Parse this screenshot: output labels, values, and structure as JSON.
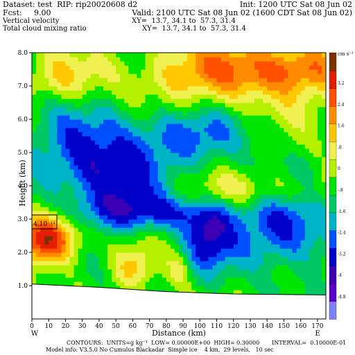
{
  "header": {
    "dataset": "Dataset: test  RIP: rip20020608 d2",
    "init": "Init: 1200 UTC Sat 08 Jun 02",
    "fcst": "Fcst:     9.00",
    "valid": "Valid: 2100 UTC Sat 08 Jun 02 (1600 CDT Sat 08 Jun 02)",
    "field1": "Vertical velocity",
    "xy1": "XY=  13.7, 34.1 to  57.3, 31.4",
    "field2": "Total cloud mixing ratio",
    "xy2": "XY=  13.7, 34.1 to  57.3, 31.4"
  },
  "footer": {
    "contours": "CONTOURS:  UNITS=g kg⁻¹  LOW= 0.00000E+00  HIGH= 0.30000       INTERVAL=  0.10000E-01",
    "model": "Model info: V3.5.0 No Cumulus Blackadar  Simple ice    4 km,  29 levels,   10 sec"
  },
  "colors": {
    "ground": "#ffffff",
    "terrain_line": "#000000",
    "palette": [
      "#7f7fff",
      "#5a00c8",
      "#3c00b4",
      "#0000c8",
      "#0050ff",
      "#00b4c8",
      "#00c864",
      "#00e600",
      "#b4f000",
      "#f0f050",
      "#ffc800",
      "#ff8c00",
      "#ff5000",
      "#e61e00",
      "#7a3300"
    ]
  },
  "chart_data": {
    "type": "heatmap",
    "title": "Vertical velocity",
    "xlabel": "Distance (km)",
    "ylabel": "Height (km)",
    "xlim": [
      0,
      175
    ],
    "ylim": [
      0,
      8
    ],
    "x_ticks": [
      "0",
      "10",
      "20",
      "30",
      "40",
      "50",
      "60",
      "70",
      "80",
      "90",
      "100",
      "110",
      "120",
      "130",
      "140",
      "150",
      "160",
      "170"
    ],
    "y_ticks": [
      "1.0",
      "2.0",
      "3.0",
      "4.0",
      "5.0",
      "6.0",
      "7.0",
      "8.0"
    ],
    "endpoints": {
      "left": "W",
      "right": "E"
    },
    "colorbar": {
      "unit": "cm s⁻¹",
      "labels": [
        "3.2",
        "2.4",
        "1.6",
        ".8",
        "0",
        "-.8",
        "-1.6",
        "-2.4",
        "-3.2",
        "-4",
        "-4.8"
      ]
    },
    "annotation": "4.10⁻¹¹",
    "terrain_km": [
      [
        0,
        1.05
      ],
      [
        40,
        0.95
      ],
      [
        80,
        0.82
      ],
      [
        120,
        0.75
      ],
      [
        175,
        0.72
      ]
    ],
    "blobs": [
      {
        "x": 10,
        "y": 2.4,
        "sx": 14,
        "sy": 0.55,
        "a": 1.0
      },
      {
        "x": 120,
        "y": 7.4,
        "sx": 45,
        "sy": 0.7,
        "a": 0.55
      },
      {
        "x": 160,
        "y": 7.6,
        "sx": 18,
        "sy": 0.5,
        "a": 0.4
      },
      {
        "x": 20,
        "y": 7.2,
        "sx": 18,
        "sy": 0.5,
        "a": 0.25
      },
      {
        "x": 140,
        "y": 3.9,
        "sx": 30,
        "sy": 0.35,
        "a": 0.28
      },
      {
        "x": 90,
        "y": 5.5,
        "sx": 25,
        "sy": 0.6,
        "a": -0.35
      },
      {
        "x": 40,
        "y": 4.5,
        "sx": 25,
        "sy": 1.2,
        "a": -0.6
      },
      {
        "x": 105,
        "y": 2.5,
        "sx": 10,
        "sy": 0.7,
        "a": -0.55
      },
      {
        "x": 150,
        "y": 2.6,
        "sx": 20,
        "sy": 0.8,
        "a": -0.55
      },
      {
        "x": 75,
        "y": 3.2,
        "sx": 30,
        "sy": 0.35,
        "a": -0.4
      },
      {
        "x": 60,
        "y": 1.6,
        "sx": 8,
        "sy": 0.5,
        "a": 0.3
      },
      {
        "x": 88,
        "y": 1.5,
        "sx": 5,
        "sy": 0.4,
        "a": 0.25
      }
    ]
  }
}
